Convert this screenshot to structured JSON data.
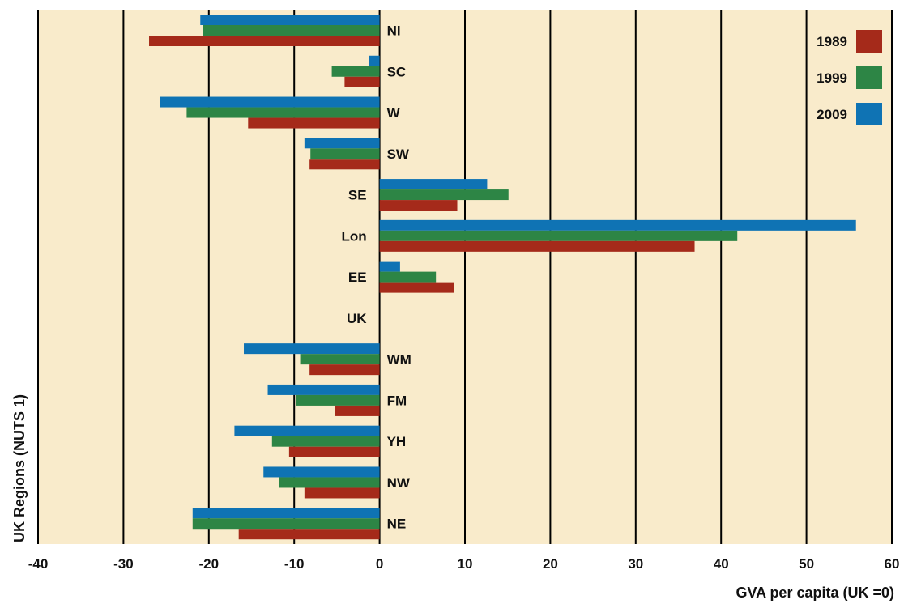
{
  "chart_data": {
    "type": "bar",
    "orientation": "horizontal",
    "xlabel": "GVA per capita (UK =0)",
    "ylabel": "UK Regions (NUTS 1)",
    "xlim": [
      -40,
      60
    ],
    "xticks": [
      -40,
      -30,
      -20,
      -10,
      0,
      10,
      20,
      30,
      40,
      50,
      60
    ],
    "grid": "vertical",
    "legend_position": "top-right",
    "categories": [
      "NI",
      "SC",
      "W",
      "SW",
      "SE",
      "Lon",
      "EE",
      "UK",
      "WM",
      "FM",
      "YH",
      "NW",
      "NE"
    ],
    "series": [
      {
        "name": "2009",
        "color": "#0f73b4",
        "values": [
          -21,
          -1.2,
          -25.7,
          -8.8,
          12.6,
          55.8,
          2.4,
          0,
          -15.9,
          -13.1,
          -17,
          -13.6,
          -21.9
        ]
      },
      {
        "name": "1999",
        "color": "#2d8545",
        "values": [
          -20.7,
          -5.6,
          -22.6,
          -8.1,
          15.1,
          41.9,
          6.6,
          0,
          -9.3,
          -9.8,
          -12.6,
          -11.8,
          -21.9
        ]
      },
      {
        "name": "1989",
        "color": "#a52a1a",
        "values": [
          -27,
          -4.1,
          -15.4,
          -8.2,
          9.1,
          36.9,
          8.7,
          0,
          -8.2,
          -5.2,
          -10.6,
          -8.8,
          -16.5
        ]
      }
    ],
    "legend_order": [
      "1989",
      "1999",
      "2009"
    ]
  },
  "colors": {
    "plot_background": "#f9ebcb",
    "gridline": "#000000"
  }
}
